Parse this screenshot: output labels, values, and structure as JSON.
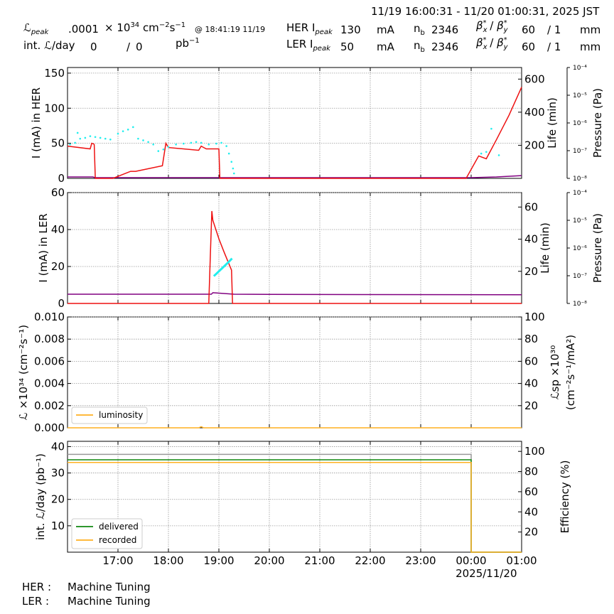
{
  "header": {
    "time_range": "11/19 16:00:31 - 11/20 01:00:31, 2025 JST",
    "lumi_label": "peak",
    "lumi_value": ".0001",
    "lumi_unit": "× 10",
    "lumi_unit_exp": "34",
    "lumi_unit_tail": " cm",
    "lumi_unit_exp2": "−2",
    "lumi_unit_s": "s",
    "lumi_unit_exp3": "−1",
    "lumi_time": "@ 18:41:19 11/19",
    "int_label": "int. ",
    "int_label_tail": "/day",
    "int_value1": "0",
    "int_sep": "/",
    "int_value2": "0",
    "int_unit": "pb",
    "int_unit_exp": "−1",
    "her_label": "HER I",
    "her_label_sub": "peak",
    "her_value": "130",
    "her_unit": "mA",
    "her_nb_label": "n",
    "her_nb_sub": "b",
    "her_nb_value": "2346",
    "her_beta_label": "β",
    "her_beta_x": "60",
    "her_beta_sep": "/ 1",
    "her_beta_unit": "mm",
    "ler_label": "LER I",
    "ler_label_sub": "peak",
    "ler_value": "50",
    "ler_unit": "mA",
    "ler_nb_label": "n",
    "ler_nb_sub": "b",
    "ler_nb_value": "2346",
    "ler_beta_label": "β",
    "ler_beta_x": "60",
    "ler_beta_sep": "/ 1",
    "ler_beta_unit": "mm"
  },
  "footer": {
    "her_label": "HER :",
    "her_status": "Machine Tuning",
    "ler_label": "LER :",
    "ler_status": "Machine Tuning"
  },
  "colors": {
    "current": "#ee1111",
    "life": "#22eeee",
    "pressure": "#800080",
    "luminosity": "#ffb020",
    "delivered": "#118811",
    "recorded": "#ffb020",
    "efficiency": "#999999",
    "grid": "#999999"
  },
  "chart_data": [
    {
      "type": "line",
      "name": "HER",
      "ylabel": "I (mA) in HER",
      "ylabel_right": "Life (min)",
      "ylabel_right2": "Pressure (Pa)",
      "ylim": [
        0,
        158
      ],
      "ylim_right": [
        0,
        670
      ],
      "yticks": [
        0,
        50,
        100,
        150
      ],
      "yticks_right": [
        200,
        400,
        600
      ],
      "pressure_ticks": [
        "10⁻⁸",
        "10⁻⁷",
        "10⁻⁶",
        "10⁻⁵",
        "10⁻⁴"
      ],
      "x_range_hours": [
        16.0,
        25.0
      ],
      "series": [
        {
          "role": "current",
          "x": [
            16.0,
            16.45,
            16.48,
            16.52,
            16.53,
            16.55,
            16.9,
            17.25,
            17.3,
            17.35,
            17.88,
            17.95,
            18.0,
            18.6,
            18.65,
            18.7,
            18.75,
            19.0,
            19.02,
            19.03,
            23.9,
            24.15,
            24.3,
            24.5,
            24.75,
            25.0
          ],
          "y": [
            46,
            42,
            50,
            49,
            48,
            0,
            0,
            10,
            10,
            10,
            18,
            50,
            44,
            40,
            46,
            44,
            42,
            42,
            0,
            0,
            0,
            32,
            28,
            55,
            90,
            130
          ]
        },
        {
          "role": "pressure",
          "x": [
            16.0,
            16.5,
            16.55,
            17.0,
            17.5,
            18.0,
            18.5,
            19.0,
            20.0,
            21.0,
            22.0,
            23.0,
            24.0,
            24.5,
            25.0
          ],
          "y": [
            2,
            2,
            1,
            1,
            1,
            1,
            1,
            1,
            1,
            1,
            1,
            1,
            1,
            2,
            4
          ]
        },
        {
          "role": "life",
          "x": [
            16.05,
            16.15,
            16.2,
            16.25,
            16.35,
            16.45,
            16.55,
            16.65,
            16.75,
            16.85,
            17.0,
            17.1,
            17.2,
            17.3,
            17.4,
            17.5,
            17.6,
            17.7,
            17.8,
            17.9,
            18.0,
            18.15,
            18.3,
            18.45,
            18.55,
            18.65,
            18.8,
            18.95,
            19.05,
            19.15,
            19.2,
            19.25,
            19.28,
            19.3,
            24.2,
            24.3,
            24.4,
            24.55
          ],
          "y": [
            205,
            215,
            275,
            240,
            245,
            255,
            250,
            245,
            240,
            235,
            270,
            285,
            295,
            310,
            240,
            230,
            220,
            205,
            165,
            175,
            190,
            205,
            210,
            215,
            220,
            215,
            205,
            210,
            215,
            195,
            150,
            100,
            60,
            30,
            150,
            160,
            300,
            140
          ]
        }
      ]
    },
    {
      "type": "line",
      "name": "LER",
      "ylabel": "I (mA) in LER",
      "ylabel_right": "Life (min)",
      "ylabel_right2": "Pressure (Pa)",
      "ylim": [
        0,
        60
      ],
      "ylim_right": [
        0,
        69
      ],
      "yticks": [
        0,
        20,
        40,
        60
      ],
      "yticks_right": [
        20,
        40,
        60
      ],
      "pressure_ticks": [
        "10⁻⁸",
        "10⁻⁷",
        "10⁻⁶",
        "10⁻⁵",
        "10⁻⁴"
      ],
      "x_range_hours": [
        16.0,
        25.0
      ],
      "series": [
        {
          "role": "current",
          "x": [
            16.0,
            18.8,
            18.83,
            18.86,
            18.88,
            19.0,
            19.1,
            19.25,
            19.27,
            19.3,
            25.0
          ],
          "y": [
            0,
            0,
            25,
            50,
            45,
            35,
            28,
            18,
            0,
            0,
            0
          ]
        },
        {
          "role": "pressure",
          "x": [
            16.0,
            18.85,
            18.88,
            19.3,
            20.0,
            22.0,
            25.0
          ],
          "y": [
            5,
            5,
            5.8,
            5,
            4.9,
            4.8,
            4.7
          ]
        },
        {
          "role": "life",
          "x": [
            18.9,
            19.0,
            19.1,
            19.2,
            19.26
          ],
          "y": [
            17,
            20,
            23,
            26,
            28
          ]
        }
      ]
    },
    {
      "type": "line",
      "name": "Luminosity",
      "ylabel": "ℒ ×10³⁴ (cm⁻²s⁻¹)",
      "ylabel_right": "ℒsp ×10³⁰",
      "ylabel_right_line2": "(cm⁻²s⁻¹/mA²)",
      "ylim": [
        0,
        0.01
      ],
      "ylim_right": [
        0,
        100
      ],
      "yticks": [
        "0.000",
        "0.002",
        "0.004",
        "0.006",
        "0.008",
        "0.010"
      ],
      "yticks_right": [
        20,
        40,
        60,
        80,
        100
      ],
      "legend": [
        "luminosity"
      ],
      "legend_position": "lower-left",
      "series": [
        {
          "name": "luminosity",
          "x": [
            16.0,
            18.6,
            18.65,
            18.7,
            18.75,
            25.0
          ],
          "y": [
            0,
            0,
            0.0001,
            0,
            0,
            0
          ]
        }
      ]
    },
    {
      "type": "line",
      "name": "Integrated",
      "ylabel": "int. ℒ/day (pb⁻¹)",
      "ylabel_right": "Efficiency (%)",
      "ylim": [
        0,
        42
      ],
      "ylim_right": [
        0,
        110
      ],
      "yticks": [
        10,
        20,
        30,
        40
      ],
      "yticks_right": [
        20,
        40,
        60,
        80,
        100
      ],
      "xticks": [
        "17:00",
        "18:00",
        "19:00",
        "20:00",
        "21:00",
        "22:00",
        "23:00",
        "00:00",
        "01:00"
      ],
      "xdate_label": "2025/11/20",
      "legend": [
        "delivered",
        "recorded"
      ],
      "legend_position": "lower-left",
      "series": [
        {
          "name": "delivered",
          "x": [
            16.0,
            24.0,
            24.0,
            25.0
          ],
          "y": [
            35,
            35,
            0,
            0
          ]
        },
        {
          "name": "recorded",
          "x": [
            16.0,
            24.0,
            24.0,
            25.0
          ],
          "y": [
            34,
            34,
            0,
            0
          ]
        },
        {
          "role": "efficiency",
          "x": [
            16.0,
            24.0,
            24.0,
            25.0
          ],
          "y": [
            97,
            97,
            0,
            0
          ]
        }
      ]
    }
  ]
}
